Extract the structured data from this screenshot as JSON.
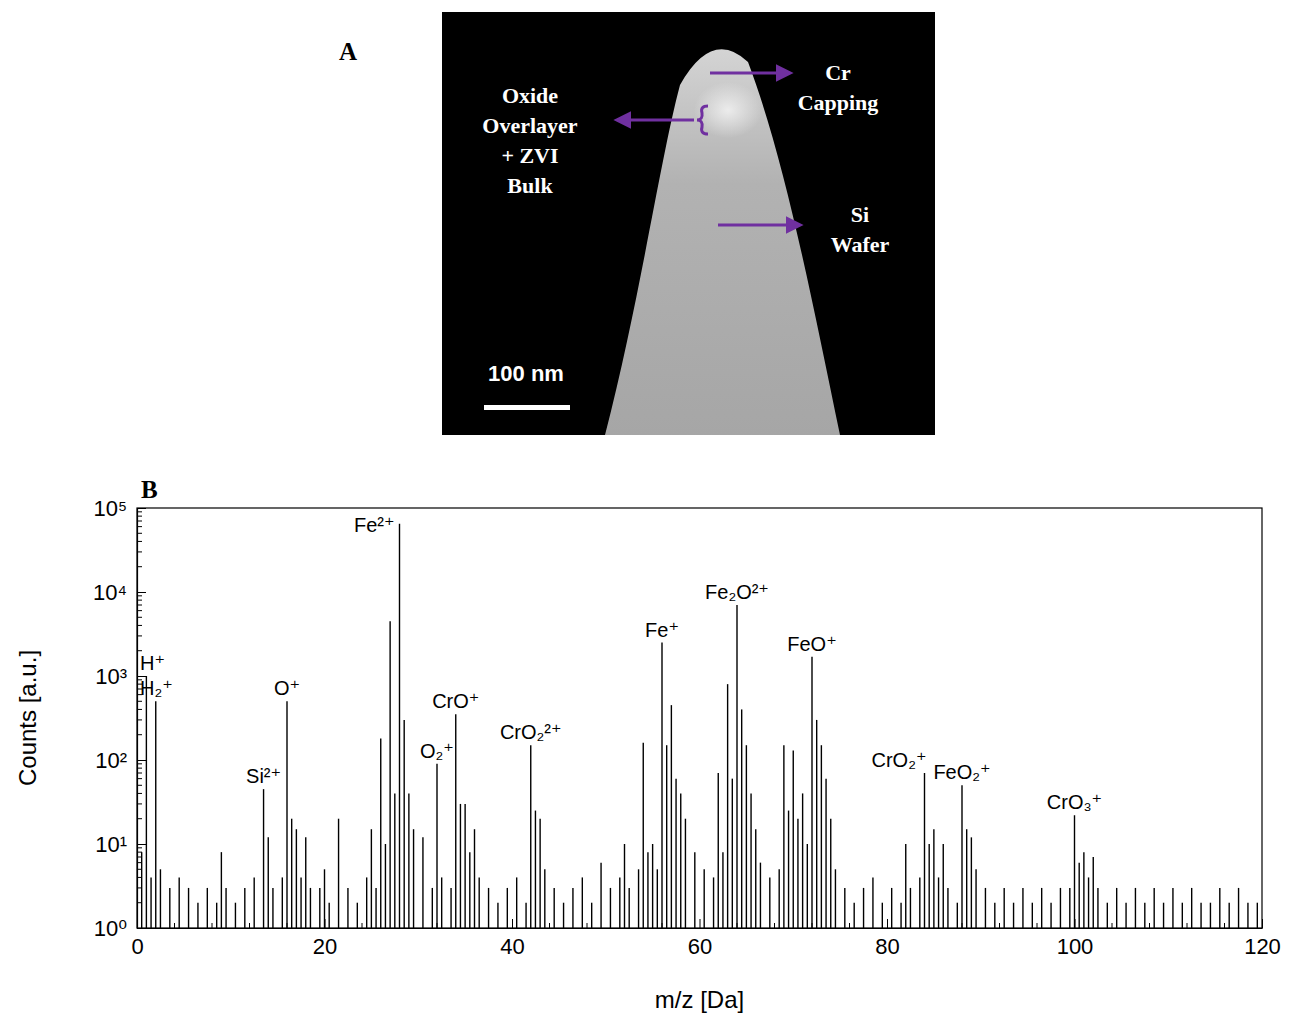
{
  "image_panel": {
    "letter": "A",
    "labels": [
      {
        "lines": [
          "Cr",
          "Capping"
        ]
      },
      {
        "lines": [
          "Oxide",
          "Overlayer",
          "+ ZVI",
          "Bulk"
        ]
      },
      {
        "lines": [
          "Si",
          "Wafer"
        ]
      }
    ],
    "scale_bar": "100 nm"
  },
  "chart_data": {
    "type": "stem",
    "letter": "B",
    "xlabel": "m/z [Da]",
    "ylabel": "Counts [a.u.]",
    "color": "#000000",
    "log": "y",
    "xlim": [
      0,
      120
    ],
    "ylim": [
      1,
      100000
    ],
    "xticks": [
      0,
      20,
      40,
      60,
      80,
      100,
      120
    ],
    "x_minor_ticks": [
      4,
      8,
      12,
      16,
      24,
      28,
      32,
      36,
      44,
      48,
      52,
      56,
      64,
      68,
      72,
      76,
      84,
      88,
      92,
      96,
      104,
      108,
      112,
      116
    ],
    "yticks": [
      {
        "value": 1,
        "label": "10⁰"
      },
      {
        "value": 10,
        "label": "10¹"
      },
      {
        "value": 100,
        "label": "10²"
      },
      {
        "value": 1000,
        "label": "10³"
      },
      {
        "value": 10000,
        "label": "10⁴"
      },
      {
        "value": 100000,
        "label": "10⁵"
      }
    ],
    "y_minor_ticks": [
      2,
      3,
      4,
      5,
      6,
      7,
      8,
      9,
      20,
      30,
      40,
      50,
      60,
      70,
      80,
      90,
      200,
      300,
      400,
      500,
      600,
      700,
      800,
      900,
      2000,
      3000,
      4000,
      5000,
      6000,
      7000,
      8000,
      9000,
      20000,
      30000,
      40000,
      50000,
      60000,
      70000,
      80000,
      90000
    ],
    "x": [
      0.5,
      1,
      1.5,
      2,
      2.5,
      3.5,
      4.5,
      5.5,
      6.5,
      7.5,
      8.5,
      9,
      9.5,
      10.5,
      11.5,
      12.5,
      13.5,
      14,
      14.5,
      15.5,
      16,
      16.5,
      17,
      17.5,
      18,
      18.5,
      19.5,
      20,
      20.5,
      21.5,
      22.5,
      23.5,
      24.5,
      25,
      25.5,
      26,
      26.5,
      27,
      27.5,
      28,
      28.5,
      29,
      29.5,
      30.5,
      31.5,
      32,
      32.5,
      33.5,
      34,
      34.5,
      35,
      35.5,
      36,
      36.5,
      37.5,
      38.5,
      39.5,
      40.5,
      41.5,
      42,
      42.5,
      43,
      43.5,
      44.5,
      45.5,
      46.5,
      47.5,
      48.5,
      49.5,
      50.5,
      51.5,
      52,
      52.5,
      53.5,
      54,
      54.5,
      55,
      55.5,
      56,
      56.5,
      57,
      57.5,
      58,
      58.5,
      59.5,
      60.5,
      61.5,
      62,
      62.5,
      63,
      63.5,
      64,
      64.5,
      65,
      65.5,
      66,
      66.5,
      67.5,
      68.5,
      69,
      69.5,
      70,
      70.5,
      71,
      71.5,
      72,
      72.5,
      73,
      73.5,
      74,
      74.5,
      75.5,
      76.5,
      77.5,
      78.5,
      79.5,
      80.5,
      81.5,
      82,
      82.5,
      83.5,
      84,
      84.5,
      85,
      85.5,
      86,
      86.5,
      87.5,
      88,
      88.5,
      89,
      89.5,
      90.5,
      91.5,
      92.5,
      93.5,
      94.5,
      95.5,
      96.5,
      97.5,
      98.5,
      99.5,
      100,
      100.5,
      101,
      101.5,
      102,
      102.5,
      103.5,
      104.5,
      105.5,
      106.5,
      107.5,
      108.5,
      109.5,
      110.5,
      111.5,
      112.5,
      113.5,
      114.5,
      115.5,
      116.5,
      117.5,
      118.5,
      119.5
    ],
    "values": [
      8,
      1000,
      4,
      500,
      5,
      3,
      4,
      3,
      2,
      3,
      2,
      8,
      3,
      2,
      3,
      4,
      45,
      12,
      3,
      4,
      500,
      20,
      15,
      4,
      12,
      3,
      3,
      5,
      2,
      20,
      3,
      2,
      4,
      15,
      3,
      180,
      10,
      4500,
      40,
      65000,
      300,
      40,
      15,
      12,
      3,
      90,
      4,
      3,
      350,
      30,
      30,
      8,
      15,
      4,
      3,
      2,
      3,
      4,
      2,
      150,
      25,
      20,
      5,
      3,
      2,
      3,
      4,
      2,
      6,
      3,
      4,
      10,
      3,
      5,
      160,
      8,
      10,
      5,
      2500,
      150,
      450,
      60,
      40,
      20,
      8,
      5,
      4,
      70,
      8,
      800,
      60,
      7000,
      400,
      150,
      40,
      15,
      6,
      4,
      5,
      150,
      25,
      130,
      20,
      40,
      10,
      1700,
      300,
      150,
      60,
      20,
      5,
      3,
      2,
      3,
      4,
      2,
      3,
      2,
      10,
      3,
      4,
      70,
      10,
      15,
      4,
      10,
      3,
      2,
      50,
      15,
      12,
      5,
      3,
      2,
      3,
      2,
      3,
      2,
      3,
      2,
      3,
      3,
      22,
      6,
      8,
      4,
      7,
      3,
      2,
      3,
      2,
      3,
      2,
      3,
      2,
      3,
      2,
      3,
      2,
      2,
      3,
      2,
      3,
      2,
      2
    ],
    "annotations": [
      {
        "text": "H⁺",
        "x": 1
      },
      {
        "text": "H₂⁺",
        "x": 2
      },
      {
        "text": "Si²⁺",
        "x": 13.5
      },
      {
        "text": "O⁺",
        "x": 16
      },
      {
        "text": "Fe²⁺",
        "x": 28
      },
      {
        "text": "O₂⁺",
        "x": 32
      },
      {
        "text": "CrO⁺",
        "x": 34
      },
      {
        "text": "CrO₂²⁺",
        "x": 42
      },
      {
        "text": "Fe⁺",
        "x": 56
      },
      {
        "text": "Fe₂O²⁺",
        "x": 64
      },
      {
        "text": "FeO⁺",
        "x": 72
      },
      {
        "text": "CrO₂⁺",
        "x": 84
      },
      {
        "text": "FeO₂⁺",
        "x": 88
      },
      {
        "text": "CrO₃⁺",
        "x": 100
      }
    ]
  }
}
